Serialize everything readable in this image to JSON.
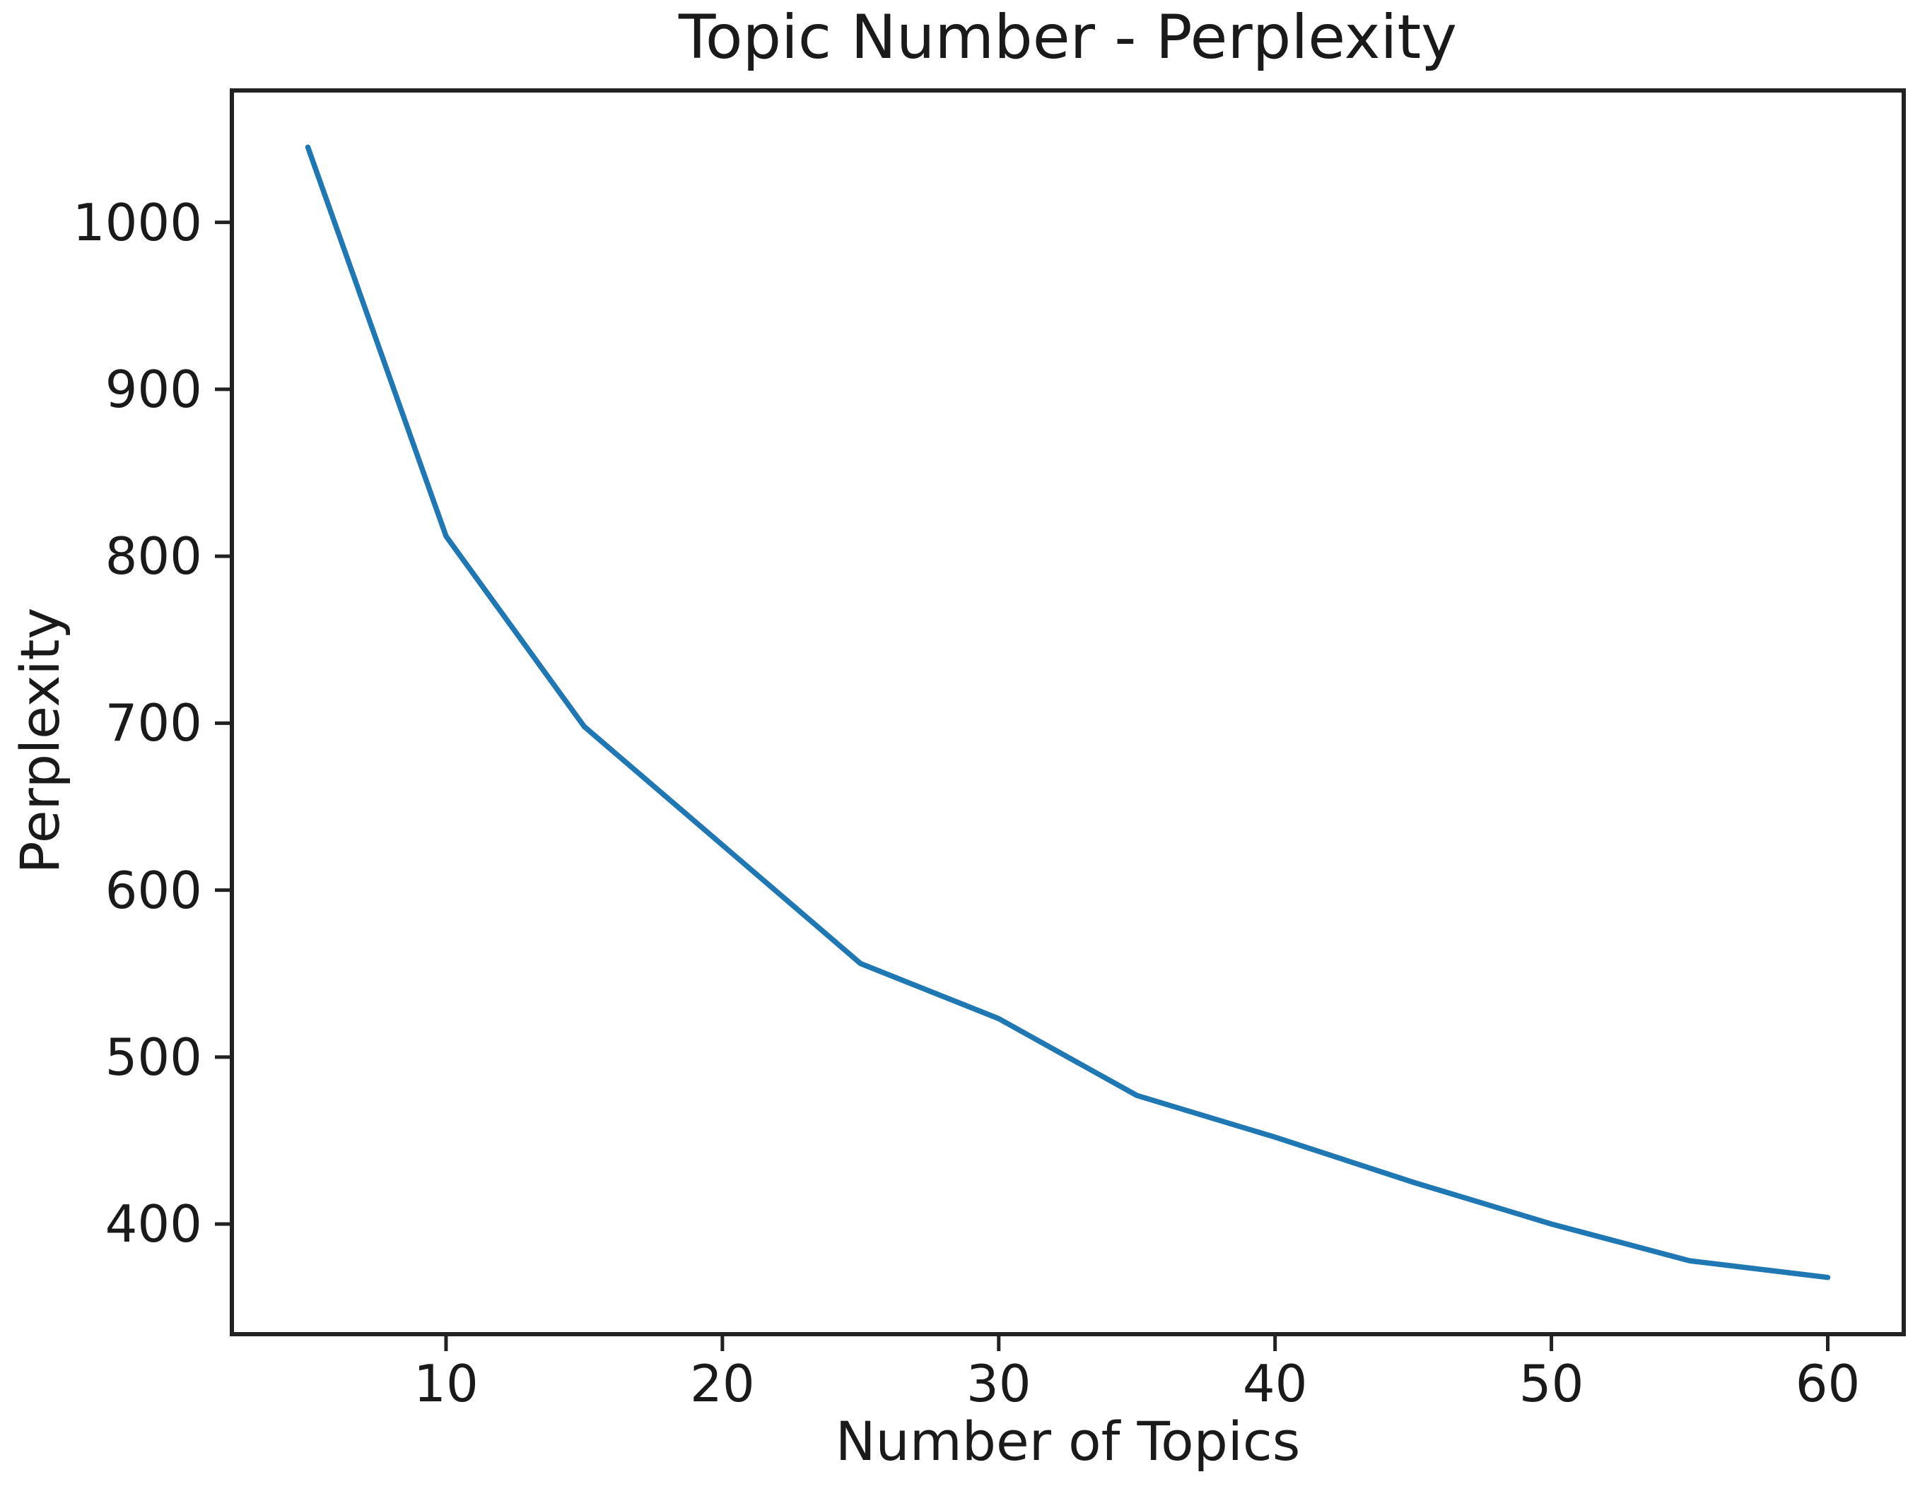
{
  "chart_data": {
    "type": "line",
    "title": "Topic Number - Perplexity",
    "xlabel": "Number of Topics",
    "ylabel": "Perplexity",
    "x": [
      5,
      10,
      15,
      20,
      25,
      30,
      35,
      40,
      45,
      50,
      55,
      60
    ],
    "values": [
      1045,
      812,
      698,
      627,
      556,
      523,
      477,
      452,
      425,
      400,
      378,
      368
    ],
    "series_name": "Perplexity",
    "x_tick_labels": [
      "10",
      "20",
      "30",
      "40",
      "50",
      "60"
    ],
    "x_tick_values": [
      10,
      20,
      30,
      40,
      50,
      60
    ],
    "y_tick_labels": [
      "400",
      "500",
      "600",
      "700",
      "800",
      "900",
      "1000"
    ],
    "y_tick_values": [
      400,
      500,
      600,
      700,
      800,
      900,
      1000
    ],
    "xlim": [
      2.25,
      62.75
    ],
    "ylim": [
      334,
      1079
    ],
    "grid": false,
    "legend_position": "none",
    "line_color": "#1f77b4",
    "spine_color": "#222222",
    "tick_color": "#222222",
    "text_color": "#1a1a1a",
    "background_color": "#ffffff"
  }
}
